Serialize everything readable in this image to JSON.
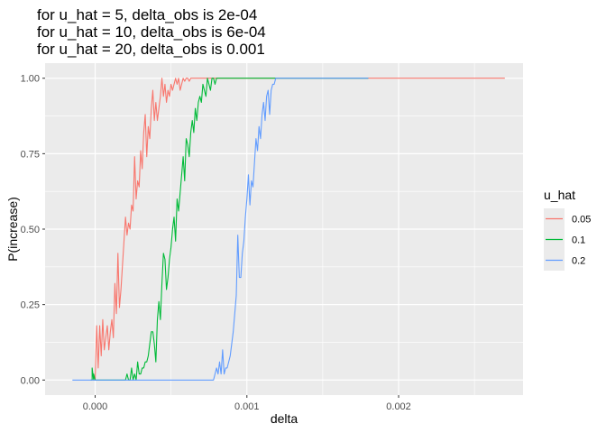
{
  "chart_data": {
    "type": "line",
    "title_lines": [
      "for u_hat = 5,   delta_obs is 2e-04",
      "for u_hat = 10, delta_obs is 6e-04",
      "for u_hat = 20, delta_obs is 0.001"
    ],
    "xlabel": "delta",
    "ylabel": "P(increase)",
    "xlim": [
      -0.00033,
      0.00282
    ],
    "ylim": [
      -0.05,
      1.05
    ],
    "xticks": [
      0.0,
      0.001,
      0.002
    ],
    "xtick_labels": [
      "0.000",
      "0.001",
      "0.002"
    ],
    "yticks": [
      0.0,
      0.25,
      0.5,
      0.75,
      1.0
    ],
    "ytick_labels": [
      "0.00",
      "0.25",
      "0.50",
      "0.75",
      "1.00"
    ],
    "grid": true,
    "legend": {
      "title": "u_hat",
      "placement": "right"
    },
    "series": [
      {
        "name": "0.05",
        "color": "#F8766D",
        "x": [
          -1e-05,
          0.0,
          1e-05,
          2e-05,
          3e-05,
          4e-05,
          5e-05,
          6e-05,
          7e-05,
          8e-05,
          9e-05,
          0.0001,
          0.00011,
          0.00012,
          0.00013,
          0.00014,
          0.00015,
          0.00016,
          0.00017,
          0.00018,
          0.00019,
          0.0002,
          0.00021,
          0.00022,
          0.00023,
          0.00024,
          0.00025,
          0.00026,
          0.00027,
          0.00028,
          0.00029,
          0.0003,
          0.00031,
          0.00032,
          0.00033,
          0.00034,
          0.00035,
          0.00036,
          0.00037,
          0.00038,
          0.00039,
          0.0004,
          0.00041,
          0.00042,
          0.00043,
          0.00044,
          0.00045,
          0.00046,
          0.00047,
          0.00048,
          0.00049,
          0.0005,
          0.00051,
          0.00052,
          0.00053,
          0.00054,
          0.00055,
          0.00056,
          0.00057,
          0.00058,
          0.00059,
          0.0006,
          0.00061,
          0.00062,
          0.00063,
          0.00064,
          0.00065,
          0.00066,
          0.00067,
          0.00068,
          0.0007,
          0.0008,
          0.001,
          0.0015,
          0.002,
          0.0024,
          0.0027
        ],
        "y": [
          0.0,
          0.0,
          0.18,
          0.04,
          0.18,
          0.08,
          0.2,
          0.1,
          0.14,
          0.18,
          0.1,
          0.16,
          0.2,
          0.14,
          0.32,
          0.22,
          0.42,
          0.24,
          0.3,
          0.38,
          0.46,
          0.54,
          0.48,
          0.52,
          0.5,
          0.58,
          0.56,
          0.74,
          0.6,
          0.66,
          0.64,
          0.76,
          0.7,
          0.82,
          0.88,
          0.74,
          0.84,
          0.8,
          0.9,
          0.96,
          0.86,
          0.92,
          0.86,
          0.9,
          0.94,
          1.0,
          0.94,
          0.98,
          0.92,
          0.96,
          0.94,
          0.98,
          0.96,
          0.98,
          1.0,
          0.98,
          1.0,
          0.96,
          0.98,
          1.0,
          0.99,
          1.0,
          1.0,
          0.99,
          1.0,
          1.0,
          1.0,
          1.0,
          1.0,
          1.0,
          1.0,
          1.0,
          1.0,
          1.0,
          1.0,
          1.0,
          1.0
        ]
      },
      {
        "name": "0.1",
        "color": "#00BA38",
        "x": [
          -3e-05,
          -2e-05,
          -2e-05,
          -1e-05,
          -1e-05,
          0.0,
          0.0001,
          0.0002,
          0.00021,
          0.00022,
          0.00023,
          0.00024,
          0.00025,
          0.00026,
          0.00027,
          0.00028,
          0.00029,
          0.0003,
          0.00031,
          0.00032,
          0.00033,
          0.00034,
          0.00035,
          0.00036,
          0.00037,
          0.00038,
          0.00039,
          0.0004,
          0.00041,
          0.00042,
          0.00043,
          0.00044,
          0.00045,
          0.00046,
          0.00047,
          0.00048,
          0.00049,
          0.0005,
          0.00051,
          0.00052,
          0.00053,
          0.00054,
          0.00055,
          0.00056,
          0.00057,
          0.00058,
          0.00059,
          0.0006,
          0.00061,
          0.00062,
          0.00063,
          0.00064,
          0.00065,
          0.00066,
          0.00067,
          0.00068,
          0.00069,
          0.0007,
          0.00071,
          0.00072,
          0.00073,
          0.00074,
          0.00075,
          0.00076,
          0.00077,
          0.00078,
          0.00079,
          0.0008,
          0.00081,
          0.00082,
          0.00083,
          0.00084,
          0.00085,
          0.00086,
          0.00087,
          0.00088,
          0.00089,
          0.0009,
          0.00091,
          0.00092,
          0.00093,
          0.00094,
          0.00095,
          0.00096,
          0.00097,
          0.00098,
          0.00099,
          0.001,
          0.0012,
          0.0015,
          0.0018
        ],
        "y": [
          0.0,
          0.0,
          0.04,
          0.0,
          0.02,
          0.0,
          0.0,
          0.0,
          0.02,
          0.0,
          0.0,
          0.04,
          0.0,
          0.02,
          0.0,
          0.06,
          0.02,
          0.02,
          0.04,
          0.04,
          0.06,
          0.06,
          0.08,
          0.12,
          0.16,
          0.16,
          0.12,
          0.06,
          0.2,
          0.26,
          0.2,
          0.32,
          0.42,
          0.4,
          0.3,
          0.34,
          0.4,
          0.44,
          0.5,
          0.54,
          0.46,
          0.6,
          0.56,
          0.62,
          0.68,
          0.74,
          0.66,
          0.8,
          0.78,
          0.74,
          0.82,
          0.86,
          0.82,
          0.9,
          0.86,
          0.92,
          0.94,
          0.92,
          0.98,
          0.96,
          0.94,
          1.0,
          0.98,
          0.96,
          1.0,
          1.0,
          0.98,
          1.0,
          1.0,
          1.0,
          1.0,
          1.0,
          1.0,
          1.0,
          1.0,
          1.0,
          1.0,
          1.0,
          1.0,
          1.0,
          1.0,
          1.0,
          1.0,
          1.0,
          1.0,
          1.0,
          1.0,
          1.0,
          1.0,
          1.0,
          1.0
        ]
      },
      {
        "name": "0.2",
        "color": "#619CFF",
        "x": [
          -0.00015,
          0.0,
          0.0002,
          0.0004,
          0.0006,
          0.00077,
          0.00078,
          0.00079,
          0.0008,
          0.00081,
          0.00082,
          0.00083,
          0.00084,
          0.00085,
          0.00086,
          0.00087,
          0.00088,
          0.00089,
          0.0009,
          0.00091,
          0.00092,
          0.00093,
          0.00094,
          0.00095,
          0.00096,
          0.00097,
          0.00098,
          0.00099,
          0.001,
          0.00101,
          0.00102,
          0.00103,
          0.00104,
          0.00105,
          0.00106,
          0.00107,
          0.00108,
          0.00109,
          0.0011,
          0.00111,
          0.00112,
          0.00113,
          0.00114,
          0.00115,
          0.00116,
          0.00117,
          0.00118,
          0.00119,
          0.0012,
          0.00121,
          0.00122,
          0.00123,
          0.00124,
          0.0013,
          0.0015,
          0.0018
        ],
        "y": [
          0.0,
          0.0,
          0.0,
          0.0,
          0.0,
          0.0,
          0.0,
          0.02,
          0.04,
          0.02,
          0.06,
          0.02,
          0.1,
          0.02,
          0.04,
          0.04,
          0.06,
          0.08,
          0.12,
          0.16,
          0.22,
          0.28,
          0.48,
          0.34,
          0.34,
          0.42,
          0.46,
          0.54,
          0.6,
          0.68,
          0.58,
          0.66,
          0.64,
          0.72,
          0.8,
          0.76,
          0.84,
          0.8,
          0.88,
          0.92,
          0.86,
          0.94,
          0.96,
          0.88,
          0.96,
          0.98,
          0.98,
          1.0,
          1.0,
          1.0,
          1.0,
          1.0,
          1.0,
          1.0,
          1.0,
          1.0
        ]
      }
    ]
  }
}
